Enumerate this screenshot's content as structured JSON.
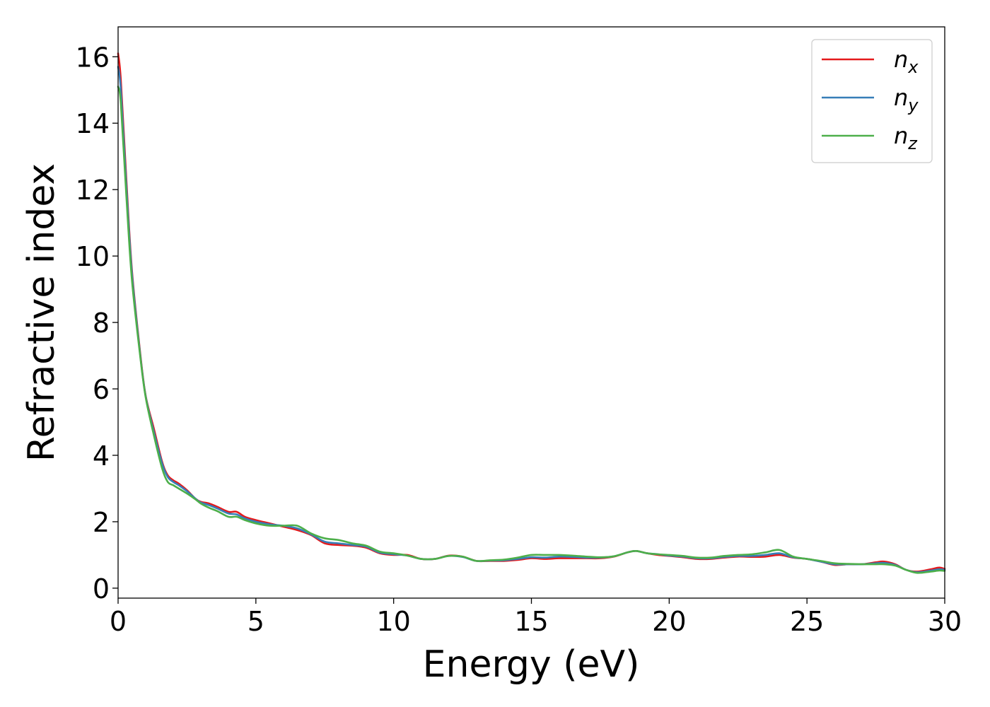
{
  "chart_data": {
    "type": "line",
    "xlabel": "Energy (eV)",
    "ylabel": "Refractive index",
    "xlim": [
      0,
      30
    ],
    "ylim": [
      -0.3,
      16.9
    ],
    "xticks": [
      0,
      5,
      10,
      15,
      20,
      25,
      30
    ],
    "yticks": [
      0,
      2,
      4,
      6,
      8,
      10,
      12,
      14,
      16
    ],
    "grid": false,
    "legend_position": "top-right",
    "series": [
      {
        "name": "n",
        "subscript": "x",
        "color": "#e41a1c",
        "x": [
          0,
          0.1,
          0.3,
          0.5,
          0.8,
          1.0,
          1.3,
          1.6,
          1.8,
          2.0,
          2.2,
          2.5,
          2.8,
          3.0,
          3.3,
          3.6,
          4.0,
          4.3,
          4.6,
          5.0,
          5.5,
          6.0,
          6.5,
          7.0,
          7.5,
          8.0,
          8.5,
          9.0,
          9.5,
          10.0,
          10.5,
          11.0,
          11.5,
          12.0,
          12.5,
          13.0,
          13.5,
          14.0,
          14.5,
          15.0,
          15.5,
          16.0,
          16.5,
          17.0,
          17.5,
          18.0,
          18.5,
          18.8,
          19.2,
          19.6,
          20.0,
          20.5,
          21.0,
          21.5,
          22.0,
          22.5,
          23.0,
          23.5,
          24.0,
          24.5,
          25.0,
          25.5,
          26.0,
          26.5,
          27.0,
          27.5,
          27.8,
          28.2,
          28.6,
          29.0,
          29.5,
          29.8,
          30.0
        ],
        "y": [
          16.1,
          15.3,
          12.3,
          9.6,
          7.1,
          5.8,
          4.8,
          3.8,
          3.4,
          3.25,
          3.15,
          2.95,
          2.7,
          2.6,
          2.55,
          2.45,
          2.3,
          2.3,
          2.15,
          2.05,
          1.95,
          1.85,
          1.75,
          1.6,
          1.35,
          1.3,
          1.28,
          1.22,
          1.05,
          1.0,
          1.0,
          0.88,
          0.88,
          0.98,
          0.95,
          0.82,
          0.82,
          0.82,
          0.85,
          0.9,
          0.88,
          0.9,
          0.9,
          0.9,
          0.9,
          0.95,
          1.08,
          1.12,
          1.05,
          1.0,
          0.97,
          0.93,
          0.88,
          0.88,
          0.92,
          0.95,
          0.94,
          0.95,
          1.0,
          0.92,
          0.88,
          0.8,
          0.7,
          0.72,
          0.72,
          0.78,
          0.8,
          0.72,
          0.55,
          0.5,
          0.57,
          0.62,
          0.58
        ]
      },
      {
        "name": "n",
        "subscript": "y",
        "color": "#377eb8",
        "x": [
          0,
          0.1,
          0.3,
          0.5,
          0.8,
          1.0,
          1.3,
          1.6,
          1.8,
          2.0,
          2.2,
          2.5,
          2.8,
          3.0,
          3.3,
          3.6,
          4.0,
          4.3,
          4.6,
          5.0,
          5.5,
          6.0,
          6.5,
          7.0,
          7.5,
          8.0,
          8.5,
          9.0,
          9.5,
          10.0,
          10.5,
          11.0,
          11.5,
          12.0,
          12.5,
          13.0,
          13.5,
          14.0,
          14.5,
          15.0,
          15.5,
          16.0,
          16.5,
          17.0,
          17.5,
          18.0,
          18.5,
          18.8,
          19.2,
          19.6,
          20.0,
          20.5,
          21.0,
          21.5,
          22.0,
          22.5,
          23.0,
          23.5,
          24.0,
          24.5,
          25.0,
          25.5,
          26.0,
          26.5,
          27.0,
          27.5,
          27.8,
          28.2,
          28.6,
          29.0,
          29.5,
          29.8,
          30.0
        ],
        "y": [
          15.7,
          15.0,
          12.1,
          9.5,
          7.05,
          5.78,
          4.7,
          3.75,
          3.35,
          3.2,
          3.1,
          2.92,
          2.7,
          2.58,
          2.5,
          2.4,
          2.25,
          2.22,
          2.1,
          2.0,
          1.92,
          1.88,
          1.8,
          1.62,
          1.4,
          1.35,
          1.3,
          1.25,
          1.07,
          1.02,
          0.98,
          0.88,
          0.88,
          0.97,
          0.94,
          0.82,
          0.83,
          0.84,
          0.88,
          0.93,
          0.92,
          0.95,
          0.94,
          0.92,
          0.92,
          0.96,
          1.08,
          1.12,
          1.05,
          1.02,
          0.98,
          0.95,
          0.9,
          0.9,
          0.94,
          0.97,
          0.97,
          1.0,
          1.05,
          0.93,
          0.88,
          0.8,
          0.72,
          0.72,
          0.72,
          0.75,
          0.76,
          0.7,
          0.55,
          0.48,
          0.53,
          0.57,
          0.55
        ]
      },
      {
        "name": "n",
        "subscript": "z",
        "color": "#4daf4a",
        "x": [
          0,
          0.1,
          0.3,
          0.5,
          0.8,
          1.0,
          1.3,
          1.6,
          1.8,
          2.0,
          2.2,
          2.5,
          2.8,
          3.0,
          3.3,
          3.6,
          4.0,
          4.3,
          4.6,
          5.0,
          5.5,
          6.0,
          6.5,
          7.0,
          7.5,
          8.0,
          8.5,
          9.0,
          9.5,
          10.0,
          10.5,
          11.0,
          11.5,
          12.0,
          12.5,
          13.0,
          13.5,
          14.0,
          14.5,
          15.0,
          15.5,
          16.0,
          16.5,
          17.0,
          17.5,
          18.0,
          18.5,
          18.8,
          19.2,
          19.6,
          20.0,
          20.5,
          21.0,
          21.5,
          22.0,
          22.5,
          23.0,
          23.5,
          24.0,
          24.5,
          25.0,
          25.5,
          26.0,
          26.5,
          27.0,
          27.5,
          27.8,
          28.2,
          28.6,
          29.0,
          29.5,
          29.8,
          30.0
        ],
        "y": [
          15.1,
          14.6,
          11.8,
          9.3,
          7.0,
          5.75,
          4.6,
          3.6,
          3.2,
          3.1,
          3.0,
          2.85,
          2.68,
          2.55,
          2.42,
          2.32,
          2.15,
          2.15,
          2.05,
          1.95,
          1.88,
          1.88,
          1.88,
          1.65,
          1.5,
          1.45,
          1.35,
          1.28,
          1.1,
          1.05,
          0.98,
          0.88,
          0.88,
          0.97,
          0.95,
          0.82,
          0.84,
          0.86,
          0.92,
          1.0,
          1.0,
          1.0,
          0.98,
          0.95,
          0.93,
          0.96,
          1.08,
          1.12,
          1.05,
          1.02,
          1.0,
          0.97,
          0.92,
          0.92,
          0.97,
          1.0,
          1.02,
          1.08,
          1.15,
          0.95,
          0.88,
          0.82,
          0.75,
          0.73,
          0.72,
          0.72,
          0.72,
          0.68,
          0.55,
          0.46,
          0.5,
          0.53,
          0.52
        ]
      }
    ]
  }
}
